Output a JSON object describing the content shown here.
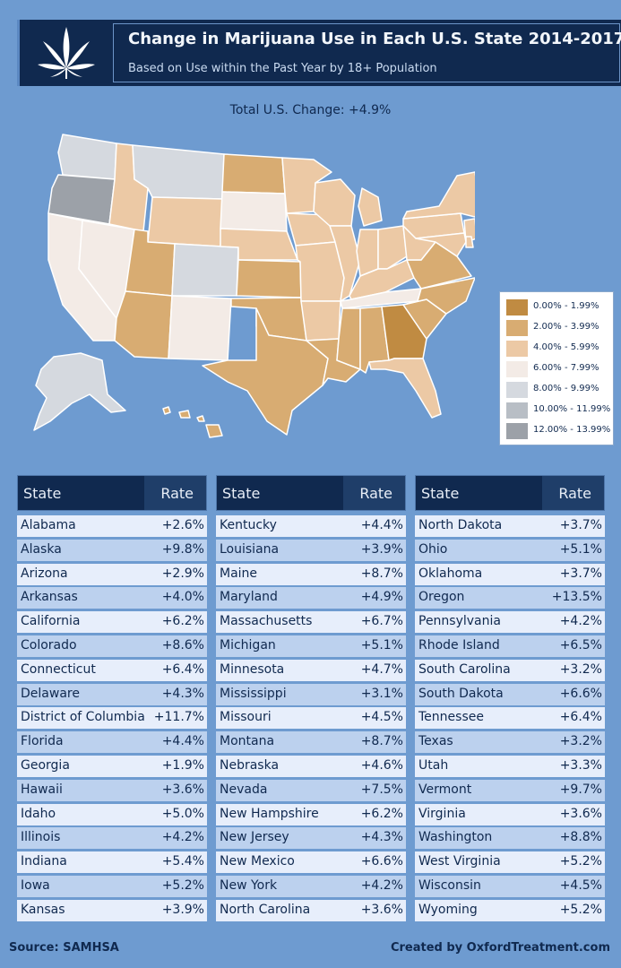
{
  "header": {
    "title": "Change in Marijuana Use in Each U.S. State 2014-2017",
    "subtitle": "Based on Use within the Past Year by 18+ Population",
    "logo_icon": "cannabis-leaf-icon"
  },
  "total_change": "Total U.S. Change: +4.9%",
  "legend": [
    {
      "label": "0.00% - 1.99%",
      "color": "#c08b42"
    },
    {
      "label": "2.00% - 3.99%",
      "color": "#d8ac72"
    },
    {
      "label": "4.00% - 5.99%",
      "color": "#ecc9a5"
    },
    {
      "label": "6.00% - 7.99%",
      "color": "#f3ebe6"
    },
    {
      "label": "8.00% - 9.99%",
      "color": "#d5d9df"
    },
    {
      "label": "10.00% - 11.99%",
      "color": "#b8bec5"
    },
    {
      "label": "12.00% - 13.99%",
      "color": "#9ca1a8"
    }
  ],
  "table": {
    "header_state": "State",
    "header_rate": "Rate",
    "row_color_a": "#e7eefb",
    "row_color_b": "#bcd1ee"
  },
  "chart_data": {
    "type": "table",
    "title": "Change in Marijuana Use in Each U.S. State 2014-2017",
    "columns": [
      "State",
      "Rate"
    ],
    "rows": [
      [
        "Alabama",
        "+2.6%"
      ],
      [
        "Alaska",
        "+9.8%"
      ],
      [
        "Arizona",
        "+2.9%"
      ],
      [
        "Arkansas",
        "+4.0%"
      ],
      [
        "California",
        "+6.2%"
      ],
      [
        "Colorado",
        "+8.6%"
      ],
      [
        "Connecticut",
        "+6.4%"
      ],
      [
        "Delaware",
        "+4.3%"
      ],
      [
        "District of Columbia",
        "+11.7%"
      ],
      [
        "Florida",
        "+4.4%"
      ],
      [
        "Georgia",
        "+1.9%"
      ],
      [
        "Hawaii",
        "+3.6%"
      ],
      [
        "Idaho",
        "+5.0%"
      ],
      [
        "Illinois",
        "+4.2%"
      ],
      [
        "Indiana",
        "+5.4%"
      ],
      [
        "Iowa",
        "+5.2%"
      ],
      [
        "Kansas",
        "+3.9%"
      ],
      [
        "Kentucky",
        "+4.4%"
      ],
      [
        "Louisiana",
        "+3.9%"
      ],
      [
        "Maine",
        "+8.7%"
      ],
      [
        "Maryland",
        "+4.9%"
      ],
      [
        "Massachusetts",
        "+6.7%"
      ],
      [
        "Michigan",
        "+5.1%"
      ],
      [
        "Minnesota",
        "+4.7%"
      ],
      [
        "Mississippi",
        "+3.1%"
      ],
      [
        "Missouri",
        "+4.5%"
      ],
      [
        "Montana",
        "+8.7%"
      ],
      [
        "Nebraska",
        "+4.6%"
      ],
      [
        "Nevada",
        "+7.5%"
      ],
      [
        "New Hampshire",
        "+6.2%"
      ],
      [
        "New Jersey",
        "+4.3%"
      ],
      [
        "New Mexico",
        "+6.6%"
      ],
      [
        "New York",
        "+4.2%"
      ],
      [
        "North Carolina",
        "+3.6%"
      ],
      [
        "North Dakota",
        "+3.7%"
      ],
      [
        "Ohio",
        "+5.1%"
      ],
      [
        "Oklahoma",
        "+3.7%"
      ],
      [
        "Oregon",
        "+13.5%"
      ],
      [
        "Pennsylvania",
        "+4.2%"
      ],
      [
        "Rhode Island",
        "+6.5%"
      ],
      [
        "South Carolina",
        "+3.2%"
      ],
      [
        "South Dakota",
        "+6.6%"
      ],
      [
        "Tennessee",
        "+6.4%"
      ],
      [
        "Texas",
        "+3.2%"
      ],
      [
        "Utah",
        "+3.3%"
      ],
      [
        "Vermont",
        "+9.7%"
      ],
      [
        "Virginia",
        "+3.6%"
      ],
      [
        "Washington",
        "+8.8%"
      ],
      [
        "West Virginia",
        "+5.2%"
      ],
      [
        "Wisconsin",
        "+4.5%"
      ],
      [
        "Wyoming",
        "+5.2%"
      ]
    ]
  },
  "footer": {
    "source": "Source: SAMHSA",
    "credit": "Created by OxfordTreatment.com"
  }
}
